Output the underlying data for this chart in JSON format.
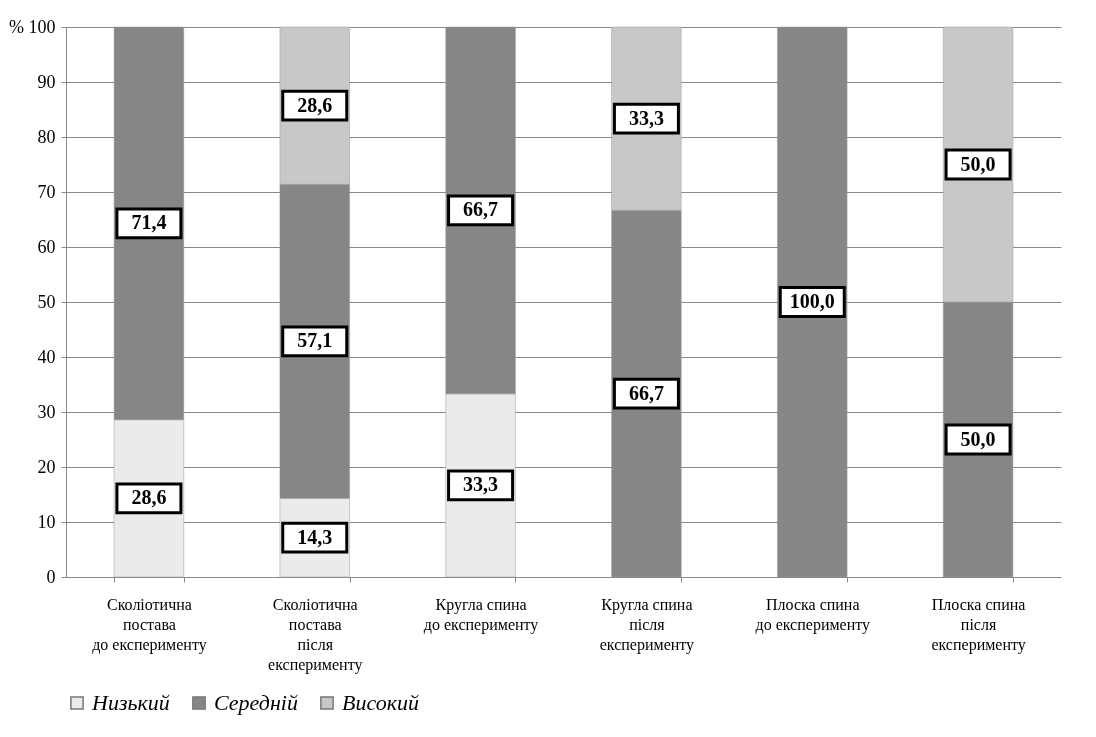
{
  "chart_data": {
    "type": "bar",
    "stacked": true,
    "categories": [
      "Сколіотична\nпостава\nдо експерименту",
      "Сколіотична\nпостава\nпісля\nексперименту",
      "Кругла спина\nдо експерименту",
      "Кругла спина\nпісля\nексперименту",
      "Плоска спина\nдо експерименту",
      "Плоска спина\nпісля\nексперименту"
    ],
    "series": [
      {
        "name": "Низький",
        "color": "#ebebeb",
        "values": [
          28.6,
          14.3,
          33.3,
          null,
          null,
          null
        ],
        "value_labels": [
          "28,6",
          "14,3",
          "33,3",
          null,
          null,
          null
        ]
      },
      {
        "name": "Середній",
        "color": "#868686",
        "values": [
          71.4,
          57.1,
          66.7,
          66.7,
          100.0,
          50.0
        ],
        "value_labels": [
          "71,4",
          "57,1",
          "66,7",
          "66,7",
          "100,0",
          "50,0"
        ]
      },
      {
        "name": "Високий",
        "color": "#c8c8c8",
        "values": [
          null,
          28.6,
          null,
          33.3,
          null,
          50.0
        ],
        "value_labels": [
          null,
          "28,6",
          null,
          "33,3",
          null,
          "50,0"
        ]
      }
    ],
    "ylim": [
      0,
      100
    ],
    "yticks": [
      0,
      10,
      20,
      30,
      40,
      50,
      60,
      70,
      80,
      90,
      {
        "value": 100,
        "label": "% 100"
      }
    ],
    "grid": "y",
    "legend": "bottom"
  }
}
